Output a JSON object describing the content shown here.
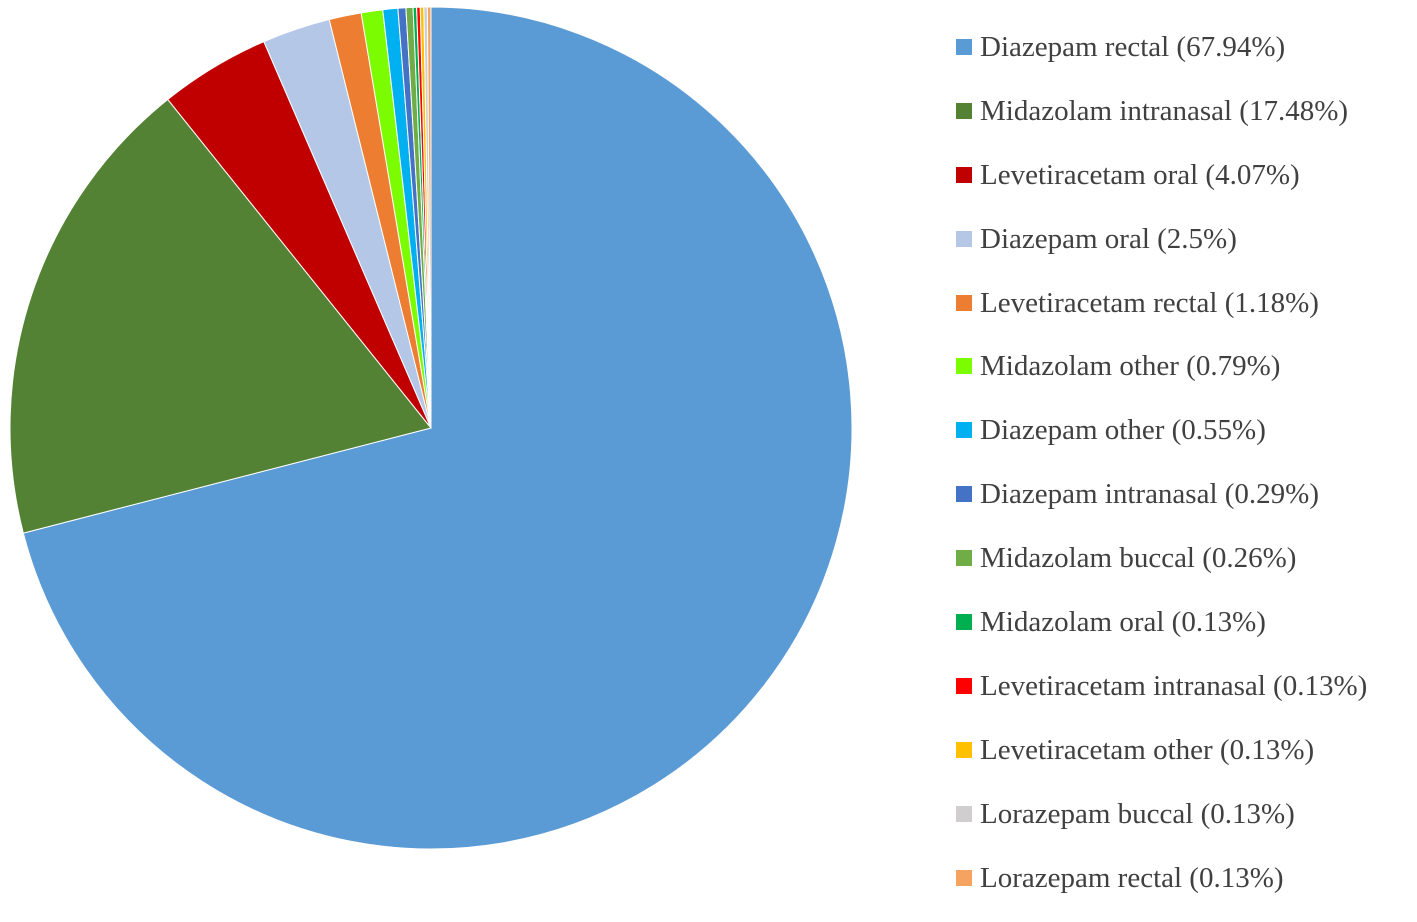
{
  "chart_data": {
    "type": "pie",
    "title": "",
    "legend_position": "right",
    "start_angle_deg": 0,
    "direction": "clockwise",
    "slices": [
      {
        "label": "Diazepam rectal (67.94%)",
        "value": 67.94,
        "color": "#5B9BD5"
      },
      {
        "label": "Midazolam intranasal (17.48%)",
        "value": 17.48,
        "color": "#548235"
      },
      {
        "label": "Levetiracetam oral (4.07%)",
        "value": 4.07,
        "color": "#C00000"
      },
      {
        "label": "Diazepam oral (2.5%)",
        "value": 2.5,
        "color": "#B4C7E7"
      },
      {
        "label": "Levetiracetam rectal (1.18%)",
        "value": 1.18,
        "color": "#ED7D31"
      },
      {
        "label": "Midazolam other (0.79%)",
        "value": 0.79,
        "color": "#7CFC00"
      },
      {
        "label": "Diazepam other (0.55%)",
        "value": 0.55,
        "color": "#00B0F0"
      },
      {
        "label": "Diazepam intranasal (0.29%)",
        "value": 0.29,
        "color": "#4472C4"
      },
      {
        "label": "Midazolam buccal (0.26%)",
        "value": 0.26,
        "color": "#70AD47"
      },
      {
        "label": "Midazolam oral (0.13%)",
        "value": 0.13,
        "color": "#00B050"
      },
      {
        "label": "Levetiracetam intranasal (0.13%)",
        "value": 0.13,
        "color": "#FF0000"
      },
      {
        "label": "Levetiracetam other (0.13%)",
        "value": 0.13,
        "color": "#FFC000"
      },
      {
        "label": "Lorazepam buccal (0.13%)",
        "value": 0.13,
        "color": "#D0CECE"
      },
      {
        "label": "Lorazepam rectal (0.13%)",
        "value": 0.13,
        "color": "#F4A460"
      }
    ]
  }
}
